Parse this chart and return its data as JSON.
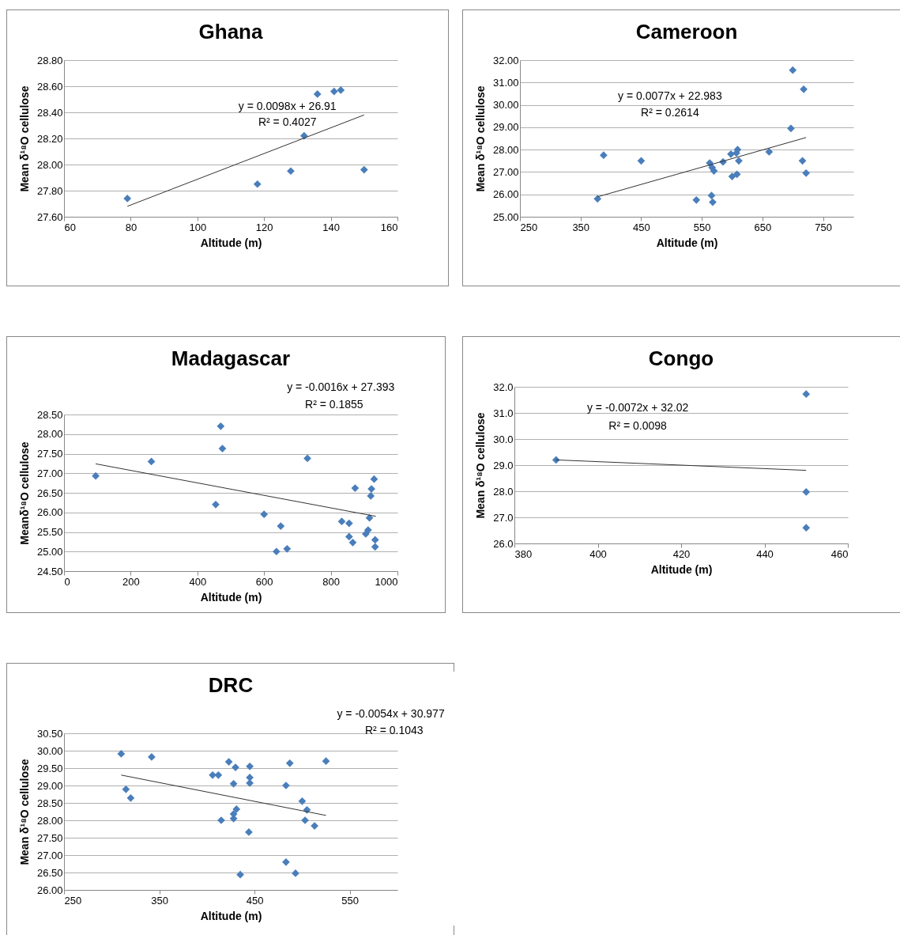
{
  "chart_data": [
    {
      "type": "scatter",
      "title": "Ghana",
      "xlabel": "Altitude (m)",
      "ylabel": "Mean δ¹⁸O cellulose",
      "xlim": [
        60,
        160
      ],
      "xticks": [
        60,
        80,
        100,
        120,
        140,
        160
      ],
      "ylim": [
        27.6,
        28.8
      ],
      "yticks": [
        {
          "value": 27.6,
          "label": "27.60"
        },
        {
          "value": 27.8,
          "label": "27.80"
        },
        {
          "value": 28,
          "label": "28.00"
        },
        {
          "value": 28.2,
          "label": "28.20"
        },
        {
          "value": 28.4,
          "label": "28.40"
        },
        {
          "value": 28.6,
          "label": "28.60"
        },
        {
          "value": 28.8,
          "label": "28.80"
        }
      ],
      "grid": "y",
      "marker": "diamond",
      "annotations": [
        "y = 0.0098x + 26.91",
        "R² = 0.4027"
      ],
      "series": [
        {
          "type": "scatter",
          "color": "#4a7ebb",
          "x": [
            79,
            118,
            128,
            132,
            136,
            141,
            143,
            150
          ],
          "values": [
            27.74,
            27.85,
            27.95,
            28.22,
            28.54,
            28.56,
            28.57,
            27.96
          ]
        },
        {
          "type": "line",
          "color": "#333333",
          "marker": "none",
          "x": [
            79,
            150
          ],
          "values": [
            27.68,
            28.38
          ]
        }
      ]
    },
    {
      "type": "scatter",
      "title": "Cameroon",
      "xlabel": "Altitude (m)",
      "ylabel": "Mean δ¹⁸O cellulose",
      "xlim": [
        250,
        800
      ],
      "xticks": [
        250,
        350,
        450,
        550,
        650,
        750
      ],
      "ylim": [
        25,
        32
      ],
      "yticks": [
        {
          "value": 25,
          "label": "25.00"
        },
        {
          "value": 26,
          "label": "26.00"
        },
        {
          "value": 27,
          "label": "27.00"
        },
        {
          "value": 28,
          "label": "28.00"
        },
        {
          "value": 29,
          "label": "29.00"
        },
        {
          "value": 30,
          "label": "30.00"
        },
        {
          "value": 31,
          "label": "31.00"
        },
        {
          "value": 32,
          "label": "32.00"
        }
      ],
      "grid": "y",
      "marker": "diamond",
      "annotations": [
        "y = 0.0077x + 22.983",
        "R² = 0.2614"
      ],
      "series": [
        {
          "type": "scatter",
          "color": "#4a7ebb",
          "x": [
            378,
            388,
            450,
            541,
            563,
            566,
            568,
            567,
            570,
            585,
            598,
            600,
            607,
            609,
            608,
            611,
            661,
            697,
            700,
            716,
            718,
            722
          ],
          "values": [
            25.8,
            27.75,
            27.5,
            25.75,
            27.4,
            25.95,
            25.65,
            27.2,
            27.05,
            27.45,
            27.8,
            26.8,
            27.85,
            28.0,
            26.9,
            27.5,
            27.9,
            28.95,
            31.55,
            27.5,
            30.7,
            26.95
          ]
        },
        {
          "type": "line",
          "color": "#333333",
          "marker": "none",
          "x": [
            378,
            722
          ],
          "values": [
            25.89,
            28.54
          ]
        }
      ]
    },
    {
      "type": "scatter",
      "title": "Madagascar",
      "xlabel": "Altitude (m)",
      "ylabel": "Meanδ¹⁸O cellulose",
      "xlim": [
        0,
        1000
      ],
      "xticks": [
        0,
        200,
        400,
        600,
        800,
        1000
      ],
      "ylim": [
        24.5,
        28.5
      ],
      "yticks": [
        {
          "value": 24.5,
          "label": "24.50"
        },
        {
          "value": 25,
          "label": "25.00"
        },
        {
          "value": 25.5,
          "label": "25.50"
        },
        {
          "value": 26,
          "label": "26.00"
        },
        {
          "value": 26.5,
          "label": "26.50"
        },
        {
          "value": 27,
          "label": "27.00"
        },
        {
          "value": 27.5,
          "label": "27.50"
        },
        {
          "value": 28,
          "label": "28.00"
        },
        {
          "value": 28.5,
          "label": "28.50"
        }
      ],
      "grid": "y",
      "marker": "diamond",
      "annotations": [
        "y = -0.0016x + 27.393",
        "R² = 0.1855"
      ],
      "series": [
        {
          "type": "scatter",
          "color": "#4a7ebb",
          "x": [
            95,
            262,
            455,
            470,
            475,
            600,
            650,
            637,
            669,
            730,
            833,
            855,
            855,
            866,
            873,
            905,
            912,
            916,
            920,
            922,
            930,
            933,
            933
          ],
          "values": [
            26.93,
            27.3,
            26.2,
            28.2,
            27.63,
            25.95,
            25.65,
            25.0,
            25.07,
            27.38,
            25.77,
            25.72,
            25.38,
            25.23,
            26.62,
            25.45,
            25.55,
            25.86,
            26.42,
            26.6,
            26.85,
            25.3,
            25.12
          ]
        },
        {
          "type": "line",
          "color": "#333333",
          "marker": "none",
          "x": [
            95,
            935
          ],
          "values": [
            27.24,
            25.9
          ]
        }
      ]
    },
    {
      "type": "scatter",
      "title": "Congo",
      "xlabel": "Altitude (m)",
      "ylabel": "Mean δ¹⁸O cellulose",
      "xlim": [
        380,
        460
      ],
      "xticks": [
        380,
        400,
        420,
        440,
        460
      ],
      "ylim": [
        26,
        32
      ],
      "yticks": [
        {
          "value": 26,
          "label": "26.0"
        },
        {
          "value": 27,
          "label": "27.0"
        },
        {
          "value": 28,
          "label": "28.0"
        },
        {
          "value": 29,
          "label": "29.0"
        },
        {
          "value": 30,
          "label": "30.0"
        },
        {
          "value": 31,
          "label": "31.0"
        },
        {
          "value": 32,
          "label": "32.0"
        }
      ],
      "grid": "y",
      "marker": "diamond",
      "annotations": [
        "y = -0.0072x + 32.02",
        "R² = 0.0098"
      ],
      "series": [
        {
          "type": "scatter",
          "color": "#4a7ebb",
          "x": [
            390,
            450,
            450,
            450
          ],
          "values": [
            29.2,
            31.72,
            27.97,
            26.6
          ]
        },
        {
          "type": "line",
          "color": "#333333",
          "marker": "none",
          "x": [
            390,
            450
          ],
          "values": [
            29.2,
            28.8
          ]
        }
      ]
    },
    {
      "type": "scatter",
      "title": "DRC",
      "xlabel": "Altitude (m)",
      "ylabel": "Mean δ¹⁸O cellulose",
      "xlim": [
        250,
        600
      ],
      "xticks": [
        250,
        350,
        450,
        550
      ],
      "ylim": [
        26,
        30.5
      ],
      "yticks": [
        {
          "value": 26,
          "label": "26.00"
        },
        {
          "value": 26.5,
          "label": "26.50"
        },
        {
          "value": 27,
          "label": "27.00"
        },
        {
          "value": 27.5,
          "label": "27.50"
        },
        {
          "value": 28,
          "label": "28.00"
        },
        {
          "value": 28.5,
          "label": "28.50"
        },
        {
          "value": 29,
          "label": "29.00"
        },
        {
          "value": 29.5,
          "label": "29.50"
        },
        {
          "value": 30,
          "label": "30.00"
        },
        {
          "value": 30.5,
          "label": "30.50"
        }
      ],
      "grid": "y",
      "marker": "diamond",
      "annotations": [
        "y = -0.0054x + 30.977",
        "R² = 0.1043"
      ],
      "series": [
        {
          "type": "scatter",
          "color": "#4a7ebb",
          "x": [
            310,
            342,
            315,
            320,
            406,
            412,
            423,
            430,
            445,
            445,
            445,
            428,
            483,
            487,
            525,
            500,
            505,
            503,
            513,
            431,
            428,
            428,
            415,
            444,
            483,
            493,
            435
          ],
          "values": [
            29.91,
            29.82,
            28.89,
            28.64,
            29.3,
            29.3,
            29.68,
            29.52,
            29.55,
            29.23,
            29.07,
            29.05,
            29.0,
            29.64,
            29.7,
            28.55,
            28.3,
            28.0,
            27.84,
            28.32,
            28.18,
            28.05,
            28.0,
            27.66,
            26.8,
            26.48,
            26.44
          ]
        },
        {
          "type": "line",
          "color": "#333333",
          "marker": "none",
          "x": [
            310,
            525
          ],
          "values": [
            29.3,
            28.14
          ]
        }
      ]
    }
  ]
}
